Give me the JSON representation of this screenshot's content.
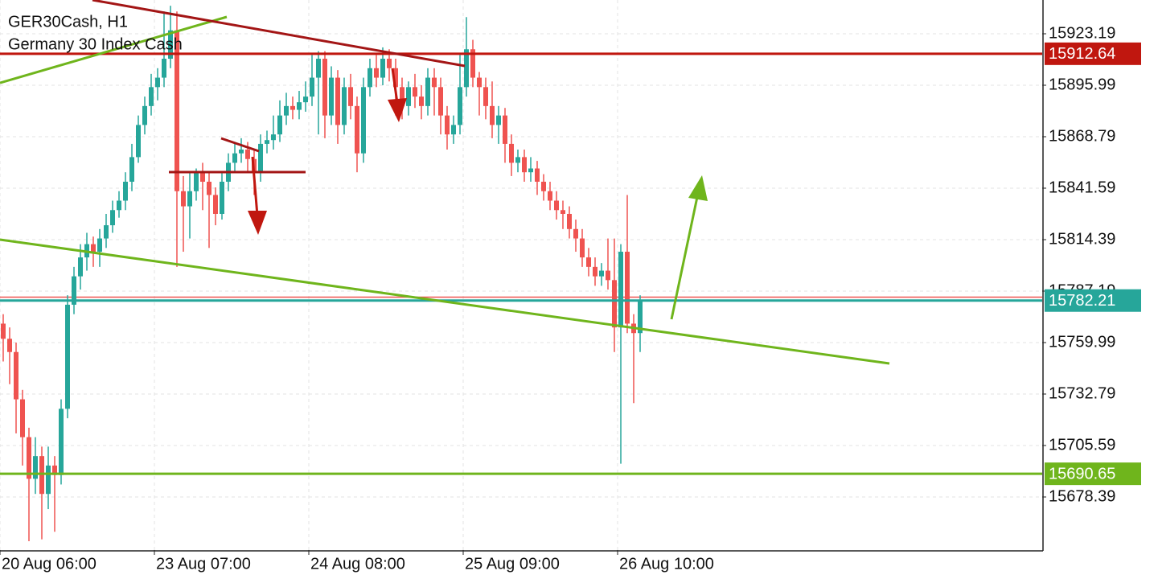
{
  "chart_data": {
    "type": "candlestick",
    "title": "GER30Cash, H1",
    "subtitle": "Germany 30 Index Cash",
    "up_color": "#26a69a",
    "down_color": "#ef5350",
    "grid": true,
    "ylim": [
      15650.34,
      15941.04
    ],
    "yticks": [
      15923.19,
      15895.99,
      15868.79,
      15841.59,
      15814.39,
      15787.19,
      15759.99,
      15732.79,
      15705.59,
      15678.39
    ],
    "categories": [
      "20 Aug 06:00",
      null,
      null,
      null,
      null,
      null,
      null,
      null,
      null,
      null,
      null,
      null,
      null,
      null,
      null,
      null,
      null,
      null,
      null,
      null,
      null,
      null,
      null,
      null,
      "23 Aug 07:00",
      null,
      null,
      null,
      null,
      null,
      null,
      null,
      null,
      null,
      null,
      null,
      null,
      null,
      null,
      null,
      null,
      null,
      null,
      null,
      null,
      null,
      null,
      null,
      "24 Aug 08:00",
      null,
      null,
      null,
      null,
      null,
      null,
      null,
      null,
      null,
      null,
      null,
      null,
      null,
      null,
      null,
      null,
      null,
      null,
      null,
      null,
      null,
      null,
      null,
      "25 Aug 09:00",
      null,
      null,
      null,
      null,
      null,
      null,
      null,
      null,
      null,
      null,
      null,
      null,
      null,
      null,
      null,
      null,
      null,
      null,
      null,
      null,
      null,
      null,
      null,
      "26 Aug 10:00",
      null,
      null,
      null
    ],
    "open": [
      15770,
      15762,
      15755,
      15730,
      15710,
      15688,
      15700,
      15680,
      15695,
      15690,
      15725,
      15780,
      15795,
      15805,
      15812,
      15808,
      15815,
      15822,
      15830,
      15835,
      15845,
      15858,
      15875,
      15885,
      15895,
      15900,
      15910,
      15925,
      15840,
      15832,
      15840,
      15850,
      15845,
      15838,
      15828,
      15845,
      15855,
      15860,
      15862,
      15857,
      15850,
      15865,
      15867,
      15870,
      15880,
      15885,
      15883,
      15887,
      15890,
      15900,
      15910,
      15880,
      15900,
      15875,
      15895,
      15885,
      15860,
      15895,
      15905,
      15900,
      15910,
      15905,
      15895,
      15885,
      15895,
      15890,
      15885,
      15900,
      15895,
      15880,
      15870,
      15875,
      15895,
      15915,
      15900,
      15895,
      15885,
      15875,
      15880,
      15865,
      15855,
      15858,
      15850,
      15852,
      15845,
      15840,
      15835,
      15830,
      15828,
      15820,
      15815,
      15805,
      15800,
      15795,
      15798,
      15793,
      15768,
      15808,
      15770,
      15765
    ],
    "high": [
      15775,
      15768,
      15760,
      15735,
      15715,
      15710,
      15705,
      15705,
      15700,
      15730,
      15785,
      15800,
      15812,
      15818,
      15816,
      15820,
      15828,
      15835,
      15840,
      15850,
      15865,
      15880,
      15890,
      15902,
      15905,
      15935,
      15938,
      15935,
      15848,
      15850,
      15852,
      15855,
      15850,
      15842,
      15850,
      15860,
      15865,
      15868,
      15866,
      15862,
      15870,
      15872,
      15880,
      15888,
      15892,
      15890,
      15893,
      15898,
      15912,
      15914,
      15914,
      15906,
      15904,
      15900,
      15902,
      15890,
      15900,
      15910,
      15912,
      15916,
      15915,
      15910,
      15900,
      15898,
      15902,
      15896,
      15905,
      15905,
      15900,
      15885,
      15880,
      15912,
      15932,
      15920,
      15903,
      15900,
      15898,
      15885,
      15884,
      15870,
      15862,
      15862,
      15858,
      15856,
      15849,
      15845,
      15840,
      15835,
      15832,
      15825,
      15820,
      15810,
      15805,
      15802,
      15815,
      15815,
      15812,
      15838,
      15775,
      15785
    ],
    "low": [
      15750,
      15738,
      15712,
      15695,
      15655,
      15680,
      15656,
      15672,
      15660,
      15685,
      15720,
      15775,
      15788,
      15798,
      15800,
      15800,
      15810,
      15818,
      15826,
      15830,
      15840,
      15855,
      15870,
      15880,
      15888,
      15895,
      15905,
      15800,
      15808,
      15815,
      15835,
      15830,
      15810,
      15822,
      15825,
      15840,
      15850,
      15855,
      15850,
      15838,
      15845,
      15860,
      15862,
      15866,
      15875,
      15878,
      15878,
      15882,
      15885,
      15870,
      15868,
      15875,
      15865,
      15870,
      15878,
      15850,
      15855,
      15890,
      15895,
      15896,
      15898,
      15880,
      15878,
      15880,
      15884,
      15878,
      15880,
      15880,
      15870,
      15862,
      15865,
      15870,
      15890,
      15895,
      15880,
      15878,
      15868,
      15865,
      15855,
      15848,
      15850,
      15845,
      15845,
      15838,
      15835,
      15830,
      15825,
      15820,
      15815,
      15808,
      15800,
      15795,
      15790,
      15790,
      15788,
      15755,
      15696,
      15765,
      15728,
      15755
    ],
    "close": [
      15762,
      15755,
      15730,
      15710,
      15688,
      15700,
      15680,
      15695,
      15690,
      15725,
      15780,
      15795,
      15805,
      15812,
      15808,
      15815,
      15822,
      15830,
      15835,
      15845,
      15858,
      15875,
      15885,
      15895,
      15900,
      15910,
      15925,
      15840,
      15832,
      15840,
      15850,
      15845,
      15838,
      15828,
      15845,
      15855,
      15860,
      15862,
      15857,
      15850,
      15865,
      15867,
      15870,
      15880,
      15885,
      15883,
      15887,
      15890,
      15900,
      15910,
      15880,
      15900,
      15875,
      15895,
      15885,
      15860,
      15895,
      15905,
      15900,
      15910,
      15905,
      15895,
      15885,
      15895,
      15890,
      15885,
      15900,
      15895,
      15880,
      15870,
      15875,
      15895,
      15915,
      15900,
      15895,
      15885,
      15875,
      15880,
      15865,
      15855,
      15858,
      15850,
      15852,
      15845,
      15840,
      15835,
      15830,
      15828,
      15820,
      15815,
      15805,
      15800,
      15795,
      15798,
      15793,
      15768,
      15808,
      15770,
      15765,
      15782.21
    ],
    "price_lines": [
      {
        "value": 15912.64,
        "color": "#c0170f"
      },
      {
        "value": 15690.65,
        "color": "#6fb51c"
      },
      {
        "value": 15782.21,
        "color": "#26a69a"
      }
    ],
    "lines": [
      {
        "value": 15784,
        "color": "#ef5350"
      }
    ]
  }
}
